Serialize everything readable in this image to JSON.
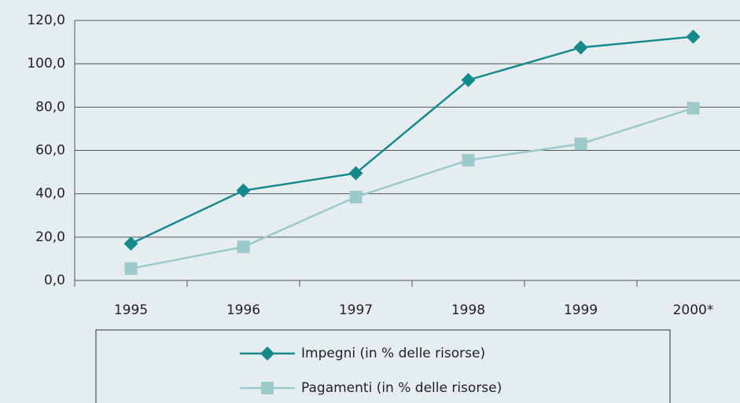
{
  "chart_data": {
    "type": "line",
    "categories": [
      "1995",
      "1996",
      "1997",
      "1998",
      "1999",
      "2000*"
    ],
    "series": [
      {
        "name": "Impegni (in % delle risorse)",
        "color": "#168a8a",
        "marker": "diamond",
        "values": [
          17,
          41.5,
          49.5,
          92.5,
          107.5,
          112.5
        ]
      },
      {
        "name": "Pagamenti (in % delle risorse)",
        "color": "#9cc9c9",
        "marker": "square",
        "values": [
          5.5,
          15.5,
          38.5,
          55.5,
          63,
          79.5
        ]
      }
    ],
    "ylim": [
      0,
      120
    ],
    "yticks": [
      {
        "value": 0,
        "label": "0,0"
      },
      {
        "value": 20,
        "label": "20,0"
      },
      {
        "value": 40,
        "label": "40,0"
      },
      {
        "value": 60,
        "label": "60,0"
      },
      {
        "value": 80,
        "label": "80,0"
      },
      {
        "value": 100,
        "label": "100,0"
      },
      {
        "value": 120,
        "label": "120,0"
      }
    ],
    "grid": true,
    "legend": "bottom"
  }
}
